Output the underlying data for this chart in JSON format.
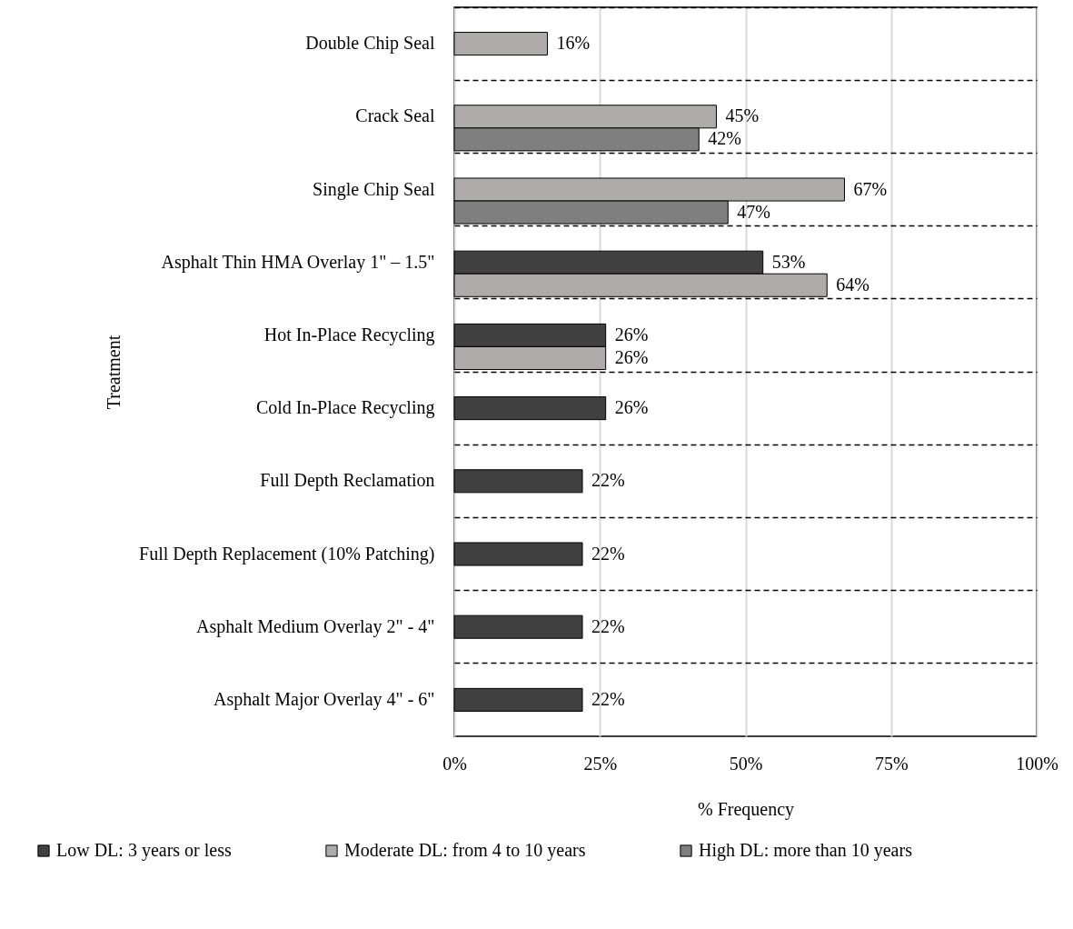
{
  "chart_data": {
    "type": "bar",
    "orientation": "horizontal",
    "xlabel": "% Frequency",
    "ylabel": "Treatment",
    "categories": [
      "Double Chip Seal",
      "Crack Seal",
      "Single Chip Seal",
      "Asphalt Thin HMA Overlay 1\" – 1.5\"",
      "Hot In-Place Recycling",
      "Cold In-Place Recycling",
      "Full Depth Reclamation",
      "Full Depth Replacement (10% Patching)",
      "Asphalt Medium Overlay 2\" - 4\"",
      "Asphalt Major Overlay 4\" - 6\""
    ],
    "series": [
      {
        "name": "Low DL: 3 years or less",
        "color": "#404040",
        "values": [
          null,
          null,
          null,
          53,
          26,
          26,
          22,
          22,
          22,
          22
        ],
        "value_labels": [
          null,
          null,
          null,
          "53%",
          "26%",
          "26%",
          "22%",
          "22%",
          "22%",
          "22%"
        ]
      },
      {
        "name": "Moderate DL: from 4 to 10 years",
        "color": "#afabab",
        "values": [
          16,
          45,
          67,
          64,
          26,
          null,
          null,
          null,
          null,
          null
        ],
        "value_labels": [
          "16%",
          "45%",
          "67%",
          "64%",
          "26%",
          null,
          null,
          null,
          null,
          null
        ]
      },
      {
        "name": "High DL: more than 10 years",
        "color": "#7f7f7f",
        "values": [
          null,
          42,
          47,
          null,
          null,
          null,
          null,
          null,
          null,
          null
        ],
        "value_labels": [
          null,
          "42%",
          "47%",
          null,
          null,
          null,
          null,
          null,
          null,
          null
        ]
      }
    ],
    "xlim": [
      0,
      100
    ],
    "xticks": [
      {
        "value": 0,
        "label": "0%"
      },
      {
        "value": 25,
        "label": "25%"
      },
      {
        "value": 50,
        "label": "50%"
      },
      {
        "value": 75,
        "label": "75%"
      },
      {
        "value": 100,
        "label": "100%"
      }
    ],
    "grid": true,
    "legend": "bottom"
  }
}
